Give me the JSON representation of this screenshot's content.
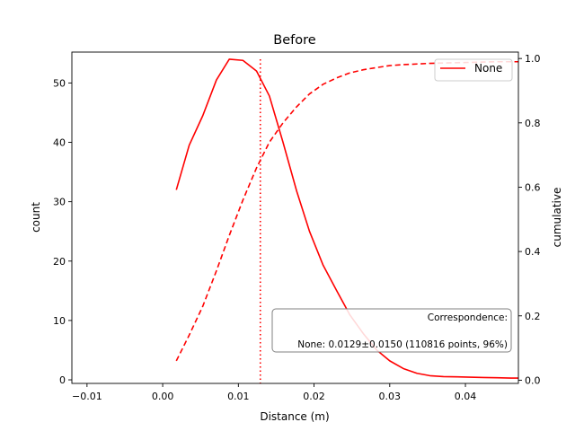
{
  "chart_data": {
    "type": "line",
    "title": "Before",
    "xlabel": "Distance (m)",
    "ylabel": "count",
    "y2label": "cumulative",
    "xlim": [
      -0.012,
      0.047
    ],
    "ylim": [
      -0.6,
      55.2
    ],
    "y2lim": [
      -0.01,
      1.02
    ],
    "xticks": [
      -0.01,
      0.0,
      0.01,
      0.02,
      0.03,
      0.04
    ],
    "xtick_labels": [
      "−0.01",
      "0.00",
      "0.01",
      "0.02",
      "0.03",
      "0.04"
    ],
    "yticks": [
      0,
      10,
      20,
      30,
      40,
      50
    ],
    "y2ticks": [
      0.0,
      0.2,
      0.4,
      0.6,
      0.8,
      1.0
    ],
    "y2tick_labels": [
      "0.0",
      "0.2",
      "0.4",
      "0.6",
      "0.8",
      "1.0"
    ],
    "color": "#ff0000",
    "grid": false,
    "legend": {
      "position": "top-right",
      "entries": [
        "None"
      ]
    },
    "series": [
      {
        "name": "None",
        "axis": "left",
        "style": "solid",
        "x": [
          0.0018,
          0.0035,
          0.0053,
          0.0071,
          0.0088,
          0.0106,
          0.0124,
          0.0141,
          0.0159,
          0.0177,
          0.0194,
          0.0212,
          0.023,
          0.0247,
          0.0265,
          0.0283,
          0.03,
          0.0318,
          0.0336,
          0.0353,
          0.0371,
          0.0389,
          0.0406,
          0.0424,
          0.0442,
          0.046,
          0.047
        ],
        "y": [
          32.0,
          39.5,
          44.5,
          50.5,
          54.0,
          53.8,
          52.0,
          47.8,
          40.0,
          31.8,
          25.0,
          19.3,
          15.0,
          11.0,
          7.8,
          5.0,
          3.2,
          1.9,
          1.1,
          0.7,
          0.55,
          0.5,
          0.45,
          0.4,
          0.35,
          0.3,
          0.3
        ]
      },
      {
        "axis": "right",
        "style": "dashed",
        "x": [
          0.0018,
          0.0035,
          0.0053,
          0.0071,
          0.0088,
          0.0106,
          0.0124,
          0.0141,
          0.0159,
          0.0177,
          0.0194,
          0.0212,
          0.023,
          0.0247,
          0.0265,
          0.0283,
          0.03,
          0.0318,
          0.0336,
          0.0353,
          0.0371,
          0.0389,
          0.0406,
          0.0424,
          0.0442,
          0.046,
          0.047
        ],
        "y": [
          0.06,
          0.14,
          0.23,
          0.34,
          0.45,
          0.56,
          0.66,
          0.74,
          0.8,
          0.85,
          0.89,
          0.92,
          0.94,
          0.955,
          0.965,
          0.972,
          0.978,
          0.981,
          0.983,
          0.985,
          0.986,
          0.987,
          0.988,
          0.989,
          0.99,
          0.99,
          0.99
        ]
      }
    ],
    "vline": {
      "x": 0.0129,
      "style": "dotted"
    },
    "annotation": {
      "lines": [
        "Correspondence:",
        "None: 0.0129±0.0150 (110816 points, 96%)"
      ],
      "position": "lower-right"
    }
  }
}
